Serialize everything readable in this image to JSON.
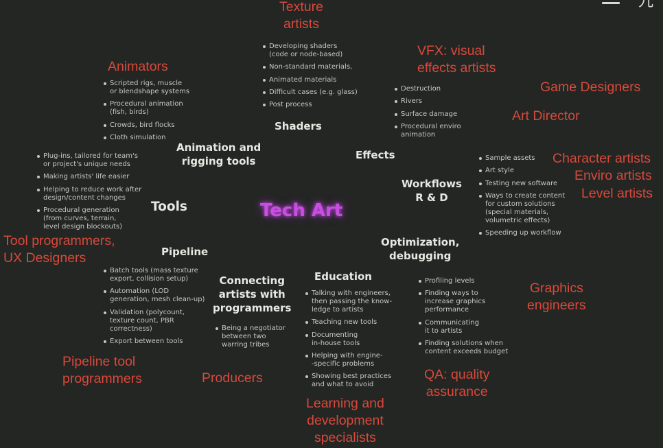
{
  "center_title": "Tech Art",
  "corner_glyph": "九",
  "roles": {
    "texture_artists": "Texture\nartists",
    "vfx_artists": "VFX: visual\neffects artists",
    "animators": "Animators",
    "game_designers": "Game Designers",
    "art_director": "Art Director",
    "character_artists": "Character artists",
    "enviro_artists": "Enviro artists",
    "level_artists": "Level artists",
    "tool_programmers": "Tool programmers,\nUX Designers",
    "graphics_engineers": "Graphics\nengineers",
    "pipeline_tool_programmers": "Pipeline tool\nprogrammers",
    "producers": "Producers",
    "qa": "QA: quality\nassurance",
    "learning_specialists": "Learning and\ndevelopment\nspecialists"
  },
  "topics": {
    "shaders": "Shaders",
    "effects": "Effects",
    "animation_rigging": "Animation and\nrigging tools",
    "workflows": "Workflows\nR & D",
    "tools": "Tools",
    "pipeline": "Pipeline",
    "optimization": "Optimization,\ndebugging",
    "education": "Education",
    "connecting": "Connecting\nartists with\nprogrammers"
  },
  "lists": {
    "shaders": [
      "Developing shaders\n(code or node-based)",
      "Non-standard materials,",
      "Animated materials",
      "Difficult cases (e.g. glass)",
      "Post process"
    ],
    "effects": [
      "Destruction",
      "Rivers",
      "Surface damage",
      "Procedural enviro\nanimation"
    ],
    "animation": [
      "Scripted rigs, muscle\nor blendshape systems",
      "Procedural animation\n(fish, birds)",
      "Crowds, bird flocks",
      "Cloth simulation"
    ],
    "tools": [
      "Plug-ins, tailored for team's\nor project's unique needs",
      "Making artists' life easier",
      "Helping to reduce work after\ndesign/content changes",
      "Procedural generation\n(from curves, terrain,\nlevel design blockouts)"
    ],
    "workflows": [
      "Sample assets",
      "Art style",
      "Testing new software",
      "Ways to create content\nfor custom solutions\n(special materials,\nvolumetric effects)",
      "Speeding up workflow"
    ],
    "pipeline": [
      "Batch tools (mass texture\nexport, collision setup)",
      "Automation (LOD\ngeneration, mesh clean-up)",
      "Validation (polycount,\ntexture count, PBR\ncorrectness)",
      "Export between tools"
    ],
    "connecting": [
      "Being a negotiator\nbetween two\nwarring tribes"
    ],
    "education": [
      "Talking with engineers,\nthen passing the know-\nledge to artists",
      "Teaching new tools",
      "Documenting\nin-house tools",
      "Helping with engine-\n-specific problems",
      "Showing best practices\nand what to avoid"
    ],
    "optimization": [
      "Profiling levels",
      "Finding ways to\nincrease graphics\nperformance",
      "Communicating\nit to artists",
      "Finding solutions when\ncontent exceeds budget"
    ]
  },
  "colors": {
    "background": "#242624",
    "role_text": "#d9493a",
    "center_glow": "#c84fe0",
    "topic_text": "#e8e8e2",
    "bullet_text": "#c8c8c2"
  }
}
